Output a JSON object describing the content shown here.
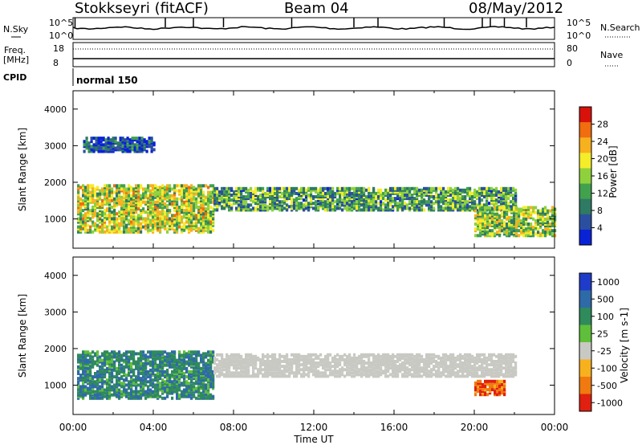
{
  "header": {
    "station": "Stokkseyri (fitACF)",
    "beam": "Beam 04",
    "date": "08/May/2012"
  },
  "top_panels": {
    "nsky_label": "N.Sky",
    "nsearch_label": "N.Search",
    "noise_ticks": [
      "10^5",
      "10^0"
    ],
    "freq_label": "Freq.",
    "freq_unit": "[MHz]",
    "freq_ticks": [
      "18",
      "8"
    ],
    "nave_label": "Nave",
    "nave_ticks": [
      "80",
      "0"
    ],
    "cpid_label": "CPID",
    "cpid_value": "normal 150"
  },
  "chart_data": [
    {
      "type": "heatmap",
      "title": "Power",
      "ylabel": "Slant Range [km]",
      "xlabel": "Time UT",
      "x_ticks": [
        "00:00",
        "04:00",
        "08:00",
        "12:00",
        "16:00",
        "20:00",
        "00:00"
      ],
      "y_ticks": [
        1000,
        2000,
        3000,
        4000
      ],
      "ylim": [
        200,
        4500
      ],
      "colorbar_label": "Power [dB]",
      "colorbar_ticks": [
        "4",
        "8",
        "12",
        "16",
        "20",
        "24",
        "28"
      ],
      "colorbar_colors": [
        "#0a22d6",
        "#2b4fa0",
        "#2f7a63",
        "#41a14e",
        "#8fd13d",
        "#f5ec2a",
        "#f7b01e",
        "#f06d10",
        "#d8120b"
      ],
      "bands": [
        {
          "t": [
            0.2,
            7.0
          ],
          "r": [
            600,
            1900
          ],
          "level": 0.55
        },
        {
          "t": [
            7.0,
            22.0
          ],
          "r": [
            1200,
            1800
          ],
          "level": 0.35
        },
        {
          "t": [
            20.0,
            24.0
          ],
          "r": [
            500,
            1300
          ],
          "level": 0.5
        },
        {
          "t": [
            0.5,
            4.0
          ],
          "r": [
            2800,
            3200
          ],
          "level": 0.1
        }
      ]
    },
    {
      "type": "heatmap",
      "title": "Velocity",
      "ylabel": "Slant Range [km]",
      "xlabel": "Time UT",
      "x_ticks": [
        "00:00",
        "04:00",
        "08:00",
        "12:00",
        "16:00",
        "20:00",
        "00:00"
      ],
      "y_ticks": [
        1000,
        2000,
        3000,
        4000
      ],
      "ylim": [
        200,
        4500
      ],
      "colorbar_label": "Velocity [m s-1]",
      "colorbar_ticks": [
        "1000",
        "500",
        "100",
        "25",
        "-25",
        "-100",
        "-500",
        "-1000"
      ],
      "colorbar_colors": [
        "#1f3cc8",
        "#2f6aa8",
        "#2f8a5c",
        "#5fbf3a",
        "#c9c9c4",
        "#f7b01e",
        "#f07a10",
        "#e02010"
      ],
      "bands": [
        {
          "t": [
            0.2,
            7.0
          ],
          "r": [
            600,
            1900
          ],
          "level": 0.5
        },
        {
          "t": [
            7.0,
            22.0
          ],
          "r": [
            1200,
            1800
          ],
          "level": 0.0
        },
        {
          "t": [
            20.0,
            21.5
          ],
          "r": [
            700,
            1100
          ],
          "level": -0.8
        }
      ]
    }
  ]
}
